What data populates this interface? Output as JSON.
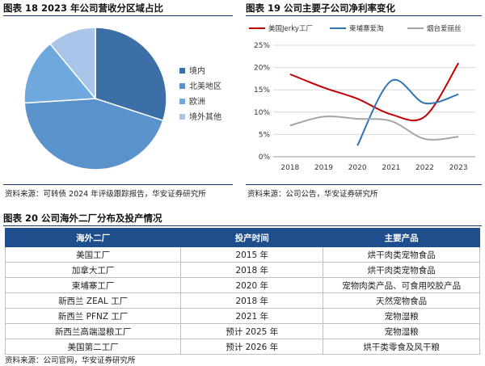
{
  "fig18": {
    "title": "图表 18 2023 年公司营收分区域占比",
    "source": "资料来源：可转债 2024 年评级跟踪报告，华安证券研究所",
    "chart_data": {
      "type": "pie",
      "categories": [
        "境内",
        "北美地区",
        "欧洲",
        "境外其他"
      ],
      "values": [
        30,
        44,
        15,
        11
      ],
      "colors": [
        "#3c6fa5",
        "#5a92cc",
        "#6fa8dc",
        "#a9c6e8"
      ],
      "legend_position": "right"
    }
  },
  "fig19": {
    "title": "图表 19 公司主要子公司净利率变化",
    "source": "资料来源：公司公告，华安证券研究所",
    "chart_data": {
      "type": "line",
      "x": [
        "2018",
        "2019",
        "2020",
        "2021",
        "2022",
        "2023"
      ],
      "ylim": [
        0,
        25
      ],
      "yticks": [
        "0%",
        "5%",
        "10%",
        "15%",
        "20%",
        "25%"
      ],
      "grid": true,
      "legend_position": "top",
      "series": [
        {
          "name": "美国Jerky工厂",
          "color": "#c00000",
          "values": [
            18.5,
            15.5,
            13.0,
            9.5,
            9.0,
            21.0
          ]
        },
        {
          "name": "柬埔寨爱淘",
          "color": "#2e75b6",
          "values": [
            null,
            null,
            2.5,
            17.0,
            12.0,
            14.0
          ]
        },
        {
          "name": "烟台爱丽丝",
          "color": "#a6a6a6",
          "values": [
            7.0,
            9.0,
            8.5,
            8.0,
            4.0,
            4.5
          ]
        }
      ]
    }
  },
  "fig20": {
    "title": "图表 20 公司海外二厂分布及投产情况",
    "source": "资料来源：公司官网，华安证券研究所",
    "headers": [
      "海外二厂",
      "投产时间",
      "主要产品"
    ],
    "rows": [
      [
        "美国工厂",
        "2015 年",
        "烘干肉类宠物食品"
      ],
      [
        "加拿大工厂",
        "2018 年",
        "烘干肉类宠物食品"
      ],
      [
        "柬埔寨工厂",
        "2020 年",
        "宠物肉类产品、可食用咬胶产品"
      ],
      [
        "新西兰 ZEAL 工厂",
        "2018 年",
        "天然宠物食品"
      ],
      [
        "新西兰 PFNZ 工厂",
        "2021 年",
        "宠物湿粮"
      ],
      [
        "新西兰高端湿粮工厂",
        "预计 2025 年",
        "宠物湿粮"
      ],
      [
        "美国第二工厂",
        "预计 2026 年",
        "烘干类零食及风干粮"
      ]
    ]
  }
}
